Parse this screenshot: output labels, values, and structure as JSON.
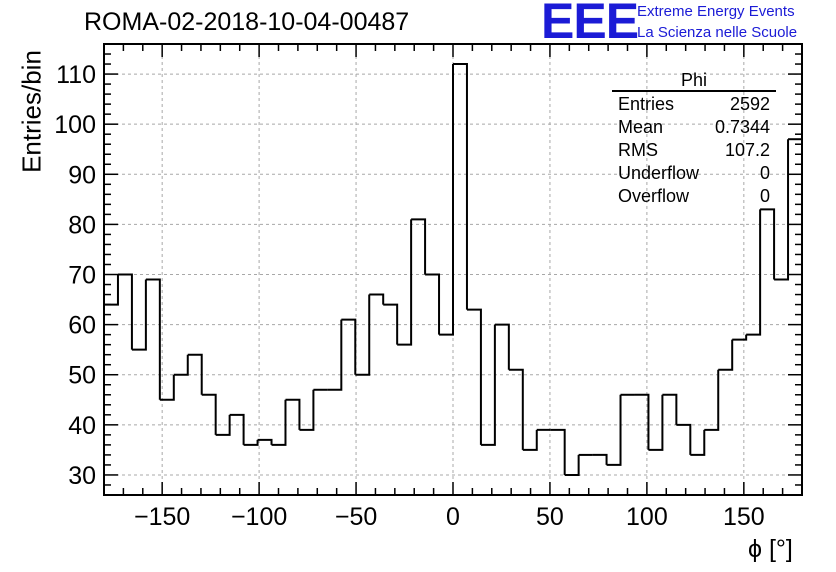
{
  "chart_data": {
    "type": "histogram",
    "title": "ROMA-02-2018-10-04-00487",
    "xlabel": "ϕ [°]",
    "ylabel": "Entries/bin",
    "xlim": [
      -180,
      180
    ],
    "ylim": [
      26,
      116
    ],
    "x_ticks": [
      -150,
      -100,
      -50,
      0,
      50,
      100,
      150
    ],
    "x_tick_labels": [
      "−150",
      "−100",
      "−50",
      "0",
      "50",
      "100",
      "150"
    ],
    "y_ticks": [
      30,
      40,
      50,
      60,
      70,
      80,
      90,
      100,
      110
    ],
    "y_tick_labels": [
      "30",
      "40",
      "50",
      "60",
      "70",
      "80",
      "90",
      "100",
      "110"
    ],
    "grid": true,
    "bin_width": 7.2,
    "values": [
      64,
      70,
      55,
      69,
      45,
      50,
      54,
      46,
      38,
      42,
      36,
      37,
      36,
      45,
      39,
      47,
      47,
      61,
      50,
      66,
      64,
      56,
      81,
      70,
      58,
      112,
      63,
      36,
      60,
      51,
      35,
      39,
      39,
      30,
      34,
      34,
      32,
      46,
      46,
      35,
      46,
      40,
      34,
      39,
      51,
      57,
      58,
      83,
      69,
      97
    ],
    "stats": {
      "name": "Phi",
      "rows": [
        {
          "label": "Entries",
          "value": "2592"
        },
        {
          "label": "Mean",
          "value": "0.7344"
        },
        {
          "label": "RMS",
          "value": "107.2"
        },
        {
          "label": "Underflow",
          "value": "0"
        },
        {
          "label": "Overflow",
          "value": "0"
        }
      ]
    }
  },
  "logo": {
    "mark": "EEE",
    "line1": "Extreme Energy Events",
    "line2": "La Scienza nelle Scuole",
    "color": "#1b1bd6"
  }
}
